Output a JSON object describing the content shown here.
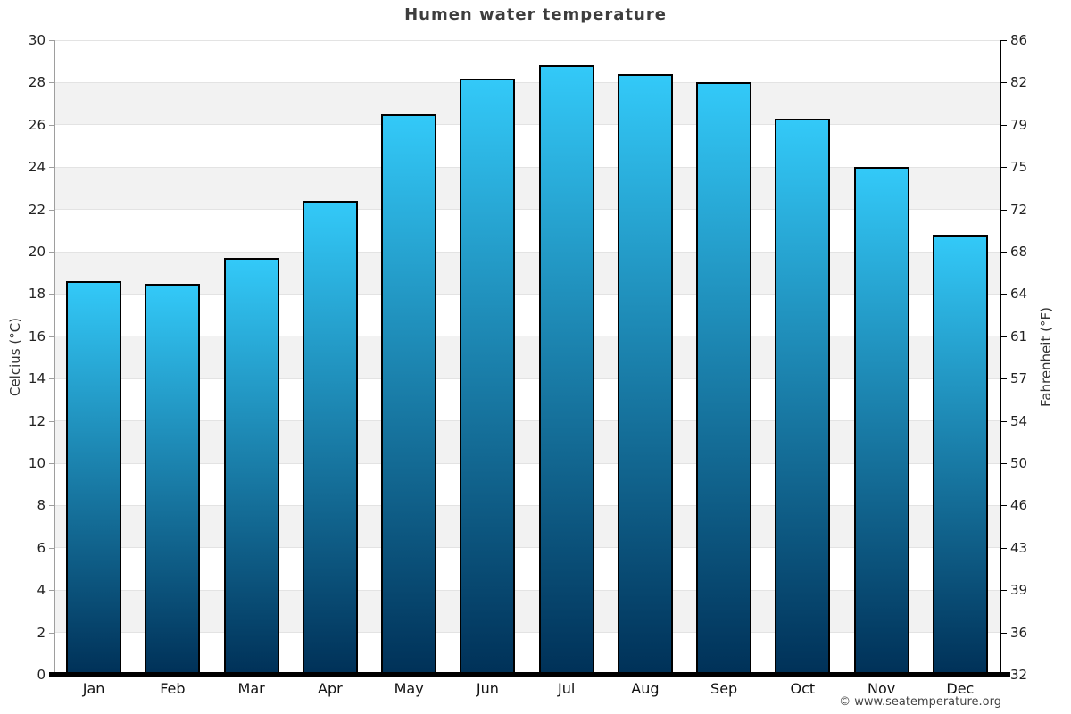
{
  "page": {
    "title": "Humen water temperature",
    "attribution": "© www.seatemperature.org"
  },
  "chart_data": {
    "type": "bar",
    "title": "Humen water temperature",
    "categories": [
      "Jan",
      "Feb",
      "Mar",
      "Apr",
      "May",
      "Jun",
      "Jul",
      "Aug",
      "Sep",
      "Oct",
      "Nov",
      "Dec"
    ],
    "values": [
      18.6,
      18.5,
      19.7,
      22.4,
      26.5,
      28.2,
      28.8,
      28.4,
      28.0,
      26.3,
      24.0,
      20.8
    ],
    "xlabel": "",
    "ylabel_left": "Celcius (°C)",
    "ylabel_right": "Fahrenheit (°F)",
    "ylim": [
      0,
      30
    ],
    "celsius_ticks": [
      0,
      2,
      4,
      6,
      8,
      10,
      12,
      14,
      16,
      18,
      20,
      22,
      24,
      26,
      28,
      30
    ],
    "fahrenheit_tick_labels": [
      "32",
      "36",
      "39",
      "43",
      "46",
      "50",
      "54",
      "57",
      "61",
      "64",
      "68",
      "72",
      "75",
      "79",
      "82",
      "86"
    ],
    "legend": "none",
    "grid": "horizontal-bands",
    "colors": {
      "bar_top": "#33c9f8",
      "bar_bottom": "#003158",
      "bar_border": "#000000",
      "band_gray": "#f2f2f2",
      "gridline": "#e3e3e3",
      "left_axis": "#9e9e9e",
      "right_axis": "#000000",
      "baseline": "#000000",
      "title_color": "#3d3d3d",
      "tick_color": "#222222"
    }
  }
}
